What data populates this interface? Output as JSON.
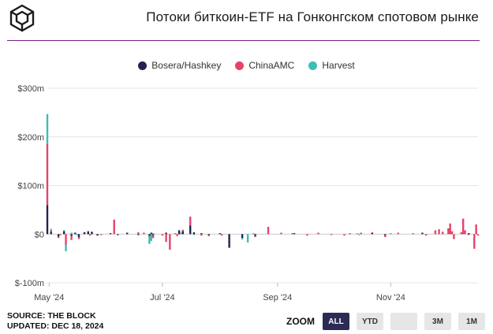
{
  "title": "Потоки биткоин-ETF на Гонконгском спотовом рынке",
  "logo_icon": "the-block-cube-icon",
  "colors": {
    "accent_rule": "#7b1e8c",
    "bosera": "#23234f",
    "chinaamc": "#e8426a",
    "harvest": "#3dbdb4",
    "zoom_active": "#2b2b55"
  },
  "legend": [
    {
      "name": "Bosera/Hashkey",
      "color": "#23234f"
    },
    {
      "name": "ChinaAMC",
      "color": "#e8426a"
    },
    {
      "name": "Harvest",
      "color": "#3dbdb4"
    }
  ],
  "source": {
    "line1": "SOURCE: THE BLOCK",
    "line2": "UPDATED: DEC 18, 2024"
  },
  "zoom": {
    "label": "ZOOM",
    "buttons": [
      {
        "label": "ALL",
        "active": true
      },
      {
        "label": "YTD",
        "active": false
      },
      {
        "label": "",
        "active": false
      },
      {
        "label": "3M",
        "active": false
      },
      {
        "label": "1M",
        "active": false
      }
    ]
  },
  "chart_data": {
    "type": "bar",
    "stacked": true,
    "title": "Потоки биткоин-ETF на Гонконгском спотовом рынке",
    "xlabel": "",
    "ylabel": "",
    "ylim": [
      -100,
      300
    ],
    "y_ticks": [
      "$-100m",
      "$0",
      "$100m",
      "$200m",
      "$300m"
    ],
    "y_tick_values": [
      -100,
      0,
      100,
      200,
      300
    ],
    "x_ticks": [
      "May '24",
      "Jul '24",
      "Sep '24",
      "Nov '24"
    ],
    "x_tick_dates": [
      "2024-05-01",
      "2024-07-01",
      "2024-09-01",
      "2024-11-01"
    ],
    "xlim": [
      "2024-04-30",
      "2024-12-18"
    ],
    "grid": "horizontal",
    "legend_position": "top-center",
    "series": [
      {
        "name": "Bosera/Hashkey",
        "color": "#23234f",
        "points": [
          [
            "2024-04-30",
            60
          ],
          [
            "2024-05-02",
            5
          ],
          [
            "2024-05-06",
            -5
          ],
          [
            "2024-05-09",
            6
          ],
          [
            "2024-05-13",
            -4
          ],
          [
            "2024-05-15",
            3
          ],
          [
            "2024-05-17",
            -6
          ],
          [
            "2024-05-20",
            4
          ],
          [
            "2024-05-22",
            6
          ],
          [
            "2024-05-24",
            5
          ],
          [
            "2024-05-27",
            -3
          ],
          [
            "2024-06-03",
            2
          ],
          [
            "2024-06-07",
            -2
          ],
          [
            "2024-06-12",
            3
          ],
          [
            "2024-06-18",
            -2
          ],
          [
            "2024-06-24",
            -4
          ],
          [
            "2024-06-25",
            3
          ],
          [
            "2024-06-26",
            -2
          ],
          [
            "2024-07-03",
            3
          ],
          [
            "2024-07-10",
            8
          ],
          [
            "2024-07-12",
            6
          ],
          [
            "2024-07-16",
            18
          ],
          [
            "2024-07-18",
            4
          ],
          [
            "2024-07-22",
            2
          ],
          [
            "2024-07-26",
            -2
          ],
          [
            "2024-08-01",
            2
          ],
          [
            "2024-08-06",
            -28
          ],
          [
            "2024-08-13",
            -8
          ],
          [
            "2024-08-20",
            -4
          ],
          [
            "2024-09-10",
            2
          ],
          [
            "2024-10-22",
            2
          ],
          [
            "2024-10-29",
            -2
          ],
          [
            "2024-11-18",
            3
          ],
          [
            "2024-12-13",
            2
          ]
        ]
      },
      {
        "name": "ChinaAMC",
        "color": "#e8426a",
        "points": [
          [
            "2024-04-30",
            125
          ],
          [
            "2024-05-02",
            3
          ],
          [
            "2024-05-06",
            -3
          ],
          [
            "2024-05-07",
            -2
          ],
          [
            "2024-05-10",
            -22
          ],
          [
            "2024-05-13",
            -8
          ],
          [
            "2024-05-17",
            -4
          ],
          [
            "2024-05-23",
            -3
          ],
          [
            "2024-05-29",
            -2
          ],
          [
            "2024-06-05",
            30
          ],
          [
            "2024-06-18",
            4
          ],
          [
            "2024-06-21",
            3
          ],
          [
            "2024-06-26",
            -6
          ],
          [
            "2024-07-01",
            -3
          ],
          [
            "2024-07-03",
            -16
          ],
          [
            "2024-07-05",
            -32
          ],
          [
            "2024-07-08",
            2
          ],
          [
            "2024-07-09",
            -4
          ],
          [
            "2024-07-12",
            3
          ],
          [
            "2024-07-16",
            18
          ],
          [
            "2024-07-22",
            -3
          ],
          [
            "2024-07-26",
            -2
          ],
          [
            "2024-08-02",
            -3
          ],
          [
            "2024-08-20",
            -2
          ],
          [
            "2024-08-27",
            15
          ],
          [
            "2024-09-03",
            3
          ],
          [
            "2024-09-09",
            2
          ],
          [
            "2024-09-17",
            -3
          ],
          [
            "2024-09-23",
            3
          ],
          [
            "2024-09-30",
            -2
          ],
          [
            "2024-10-07",
            -3
          ],
          [
            "2024-10-10",
            2
          ],
          [
            "2024-10-16",
            3
          ],
          [
            "2024-10-22",
            2
          ],
          [
            "2024-10-29",
            -4
          ],
          [
            "2024-11-05",
            3
          ],
          [
            "2024-11-13",
            2
          ],
          [
            "2024-11-20",
            -3
          ],
          [
            "2024-11-25",
            8
          ],
          [
            "2024-11-27",
            10
          ],
          [
            "2024-11-29",
            5
          ],
          [
            "2024-12-02",
            12
          ],
          [
            "2024-12-03",
            22
          ],
          [
            "2024-12-04",
            6
          ],
          [
            "2024-12-05",
            -10
          ],
          [
            "2024-12-09",
            4
          ],
          [
            "2024-12-10",
            32
          ],
          [
            "2024-12-11",
            8
          ],
          [
            "2024-12-13",
            -2
          ],
          [
            "2024-12-16",
            -30
          ],
          [
            "2024-12-17",
            20
          ],
          [
            "2024-12-18",
            -3
          ]
        ]
      },
      {
        "name": "Harvest",
        "color": "#3dbdb4",
        "points": [
          [
            "2024-04-30",
            62
          ],
          [
            "2024-05-02",
            3
          ],
          [
            "2024-05-09",
            2
          ],
          [
            "2024-05-10",
            -13
          ],
          [
            "2024-05-13",
            3
          ],
          [
            "2024-05-16",
            -2
          ],
          [
            "2024-06-24",
            -16
          ],
          [
            "2024-06-25",
            -14
          ],
          [
            "2024-06-26",
            2
          ],
          [
            "2024-07-11",
            3
          ],
          [
            "2024-07-18",
            -2
          ],
          [
            "2024-08-13",
            -3
          ],
          [
            "2024-08-16",
            -17
          ],
          [
            "2024-08-19",
            2
          ],
          [
            "2024-10-14",
            2
          ],
          [
            "2024-10-15",
            -2
          ],
          [
            "2024-11-01",
            2
          ]
        ]
      }
    ]
  }
}
